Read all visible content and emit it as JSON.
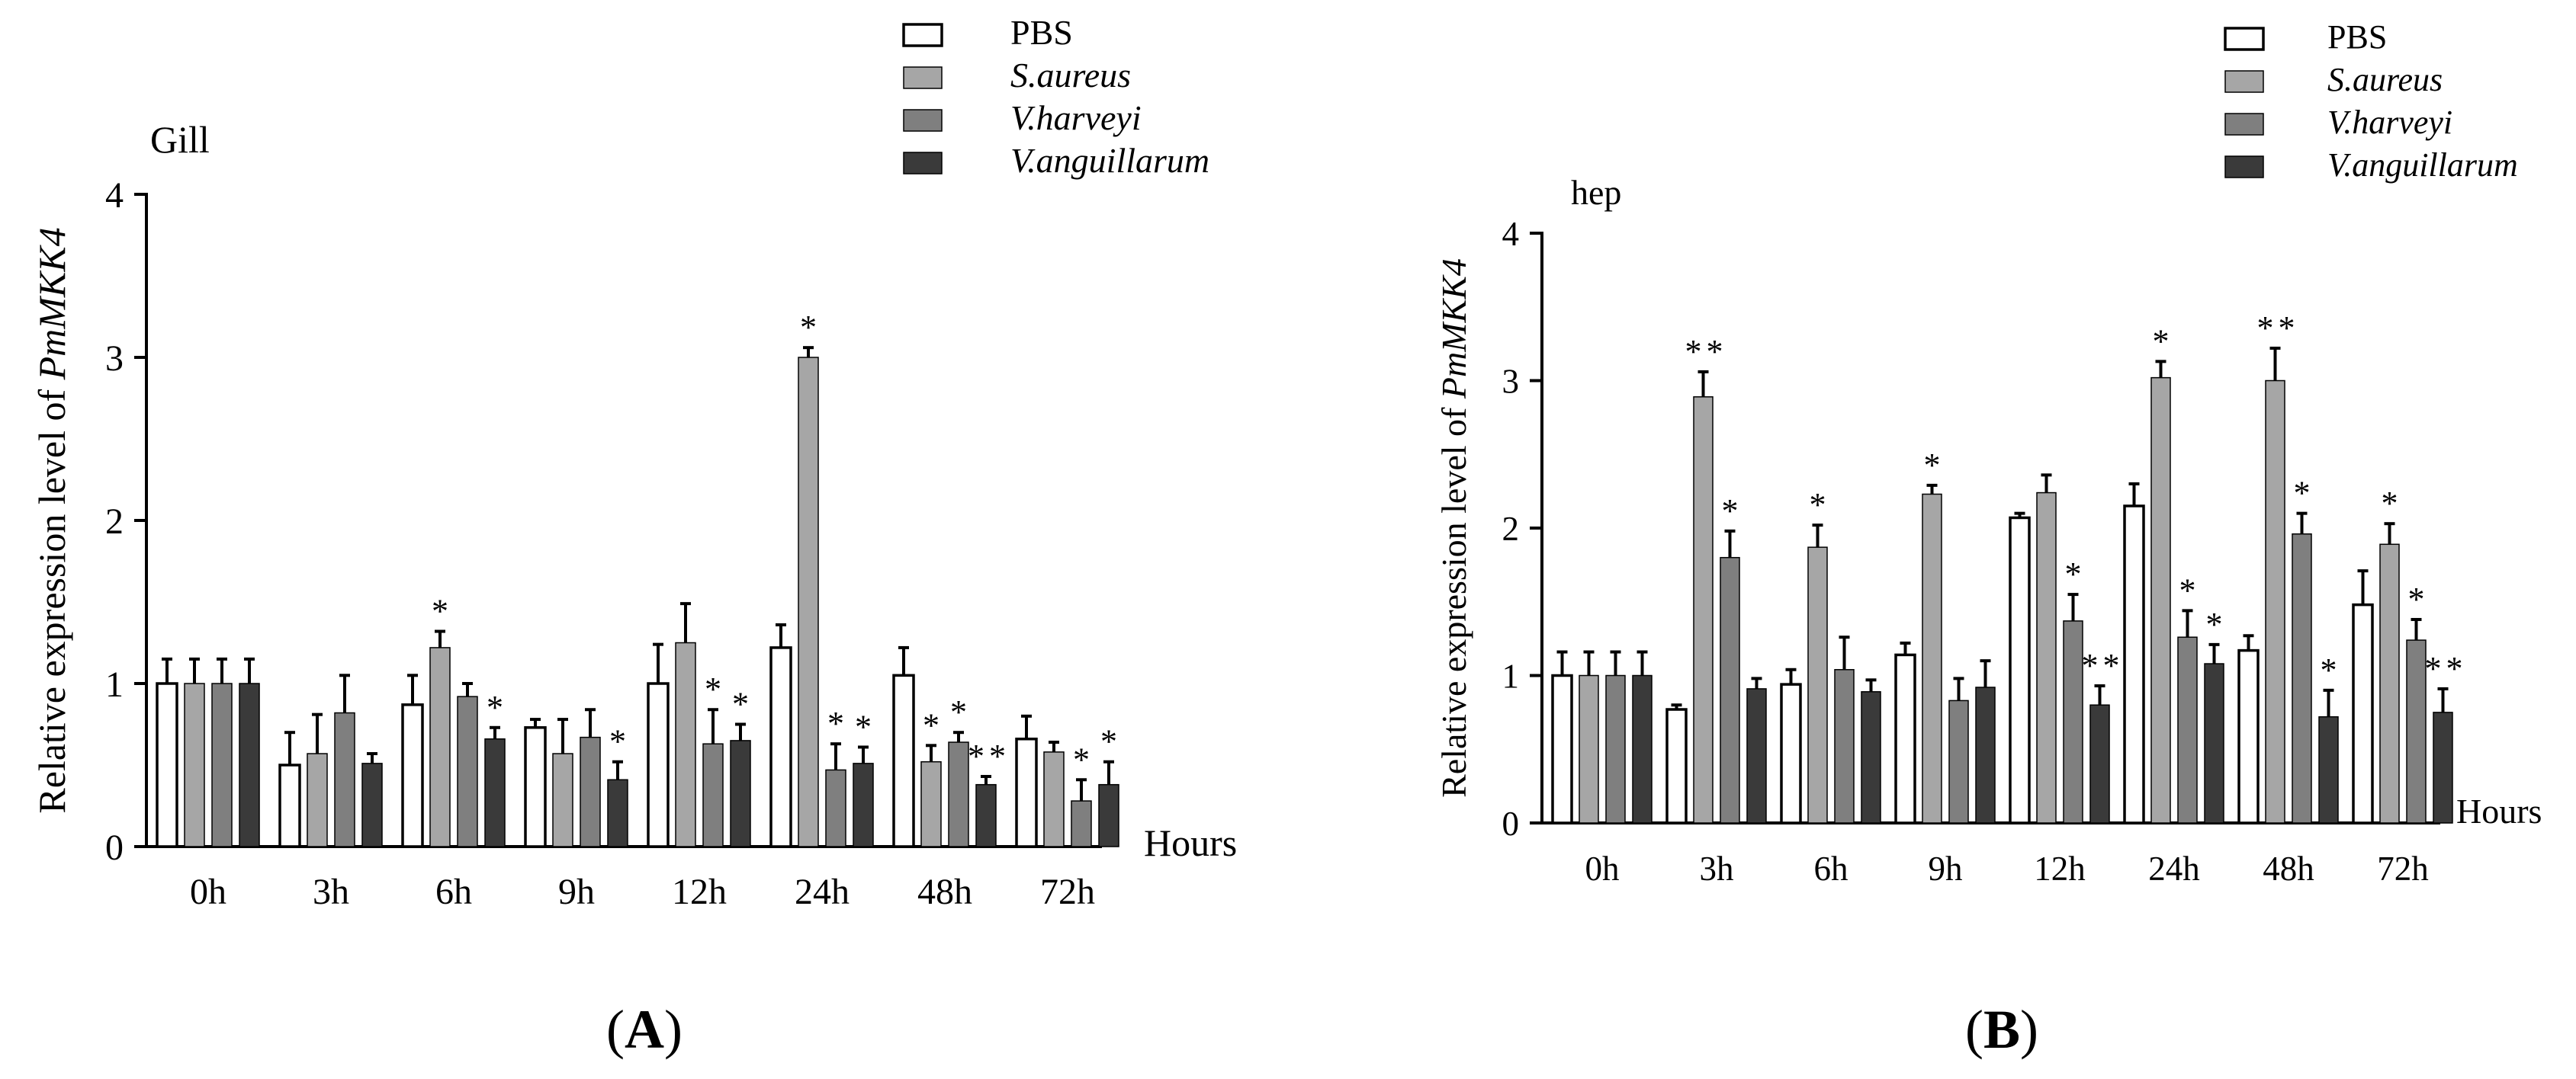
{
  "colors": {
    "pbs": "#ffffff",
    "s_aureus": "#a6a6a6",
    "v_harveyi": "#7f7f7f",
    "v_anguillarum": "#3a3a3a",
    "axis": "#000000"
  },
  "chart_data": [
    {
      "type": "bar",
      "panel_label": "(A)",
      "panel_letter": "A",
      "title": "Gill",
      "xlabel": "Hours",
      "ylabel_prefix": "Relative expression level of ",
      "ylabel_gene": "PmMKK4",
      "ylim": [
        0,
        4
      ],
      "yticks": [
        "0",
        "1",
        "2",
        "3",
        "4"
      ],
      "categories": [
        "0h",
        "3h",
        "6h",
        "9h",
        "12h",
        "24h",
        "48h",
        "72h"
      ],
      "legend": [
        "PBS",
        "S.aureus",
        "V.harveyi",
        "V.anguillarum"
      ],
      "legend_position": "top-right",
      "series": [
        {
          "name": "PBS",
          "values": [
            1.0,
            0.5,
            0.87,
            0.73,
            1.0,
            1.22,
            1.05,
            0.66
          ],
          "errors": [
            0.15,
            0.2,
            0.18,
            0.05,
            0.24,
            0.14,
            0.17,
            0.14
          ],
          "signif": [
            "",
            "",
            "",
            "",
            "",
            "",
            "",
            ""
          ]
        },
        {
          "name": "S.aureus",
          "values": [
            1.0,
            0.57,
            1.22,
            0.57,
            1.25,
            3.0,
            0.52,
            0.58
          ],
          "errors": [
            0.15,
            0.24,
            0.1,
            0.21,
            0.24,
            0.06,
            0.1,
            0.06
          ],
          "signif": [
            "",
            "",
            "*",
            "",
            "",
            "*",
            "*",
            ""
          ]
        },
        {
          "name": "V.harveyi",
          "values": [
            1.0,
            0.82,
            0.92,
            0.67,
            0.63,
            0.47,
            0.64,
            0.28
          ],
          "errors": [
            0.15,
            0.23,
            0.08,
            0.17,
            0.21,
            0.16,
            0.06,
            0.13
          ],
          "signif": [
            "",
            "",
            "",
            "",
            "*",
            "*",
            "*",
            "*"
          ]
        },
        {
          "name": "V.anguillarum",
          "values": [
            1.0,
            0.51,
            0.66,
            0.41,
            0.65,
            0.51,
            0.38,
            0.38
          ],
          "errors": [
            0.15,
            0.06,
            0.07,
            0.11,
            0.1,
            0.1,
            0.05,
            0.14
          ],
          "signif": [
            "",
            "",
            "*",
            "*",
            "*",
            "*",
            "**",
            "*"
          ]
        }
      ]
    },
    {
      "type": "bar",
      "panel_label": "(B)",
      "panel_letter": "B",
      "title": "hep",
      "xlabel": "Hours",
      "ylabel_prefix": "Relative expression level of ",
      "ylabel_gene": "PmMKK4",
      "ylim": [
        0,
        4
      ],
      "yticks": [
        "0",
        "1",
        "2",
        "3",
        "4"
      ],
      "categories": [
        "0h",
        "3h",
        "6h",
        "9h",
        "12h",
        "24h",
        "48h",
        "72h"
      ],
      "legend": [
        "PBS",
        "S.aureus",
        "V.harveyi",
        "V.anguillarum"
      ],
      "legend_position": "top-right",
      "series": [
        {
          "name": "PBS",
          "values": [
            1.0,
            0.77,
            0.94,
            1.14,
            2.07,
            2.15,
            1.17,
            1.48
          ],
          "errors": [
            0.16,
            0.03,
            0.1,
            0.08,
            0.03,
            0.15,
            0.1,
            0.23
          ],
          "signif": [
            "",
            "",
            "",
            "",
            "",
            "",
            "",
            ""
          ]
        },
        {
          "name": "S.aureus",
          "values": [
            1.0,
            2.89,
            1.87,
            2.23,
            2.24,
            3.02,
            3.0,
            1.89
          ],
          "errors": [
            0.16,
            0.17,
            0.15,
            0.06,
            0.12,
            0.11,
            0.22,
            0.14
          ],
          "signif": [
            "",
            "**",
            "*",
            "*",
            "",
            "*",
            "**",
            "*"
          ]
        },
        {
          "name": "V.harveyi",
          "values": [
            1.0,
            1.8,
            1.04,
            0.83,
            1.37,
            1.26,
            1.96,
            1.24
          ],
          "errors": [
            0.16,
            0.18,
            0.22,
            0.15,
            0.18,
            0.18,
            0.14,
            0.14
          ],
          "signif": [
            "",
            "*",
            "",
            "",
            "*",
            "*",
            "*",
            "*"
          ]
        },
        {
          "name": "V.anguillarum",
          "values": [
            1.0,
            0.91,
            0.89,
            0.92,
            0.8,
            1.08,
            0.72,
            0.75
          ],
          "errors": [
            0.16,
            0.07,
            0.08,
            0.18,
            0.13,
            0.13,
            0.18,
            0.16
          ],
          "signif": [
            "",
            "",
            "",
            "",
            "**",
            "*",
            "*",
            "**"
          ]
        }
      ]
    }
  ]
}
